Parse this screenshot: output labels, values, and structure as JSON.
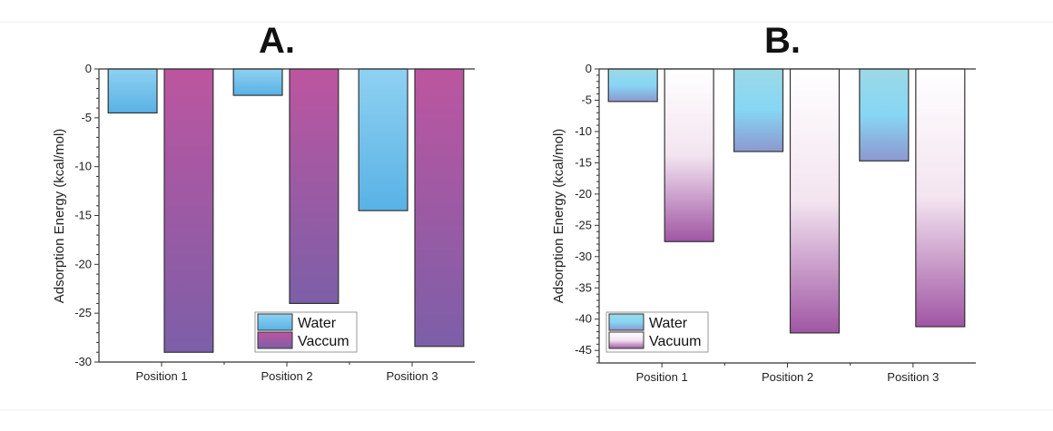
{
  "chart_data": [
    {
      "type": "bar",
      "title": "A.",
      "xlabel": "",
      "ylabel": "Adsorption Energy (kcal/mol)",
      "categories": [
        "Position 1",
        "Position 2",
        "Position 3"
      ],
      "ylim": [
        -30,
        0
      ],
      "yticks": [
        0,
        -5,
        -10,
        -15,
        -20,
        -25,
        -30
      ],
      "legend_position": "bottom-center",
      "series": [
        {
          "name": "Water",
          "values": [
            -4.5,
            -2.7,
            -14.5
          ],
          "colors": [
            "#8fd1f2",
            "#58b2e5"
          ]
        },
        {
          "name": "Vaccum",
          "values": [
            -29.0,
            -24.0,
            -28.4
          ],
          "colors": [
            "#bd55a0",
            "#7c5fa8"
          ]
        }
      ]
    },
    {
      "type": "bar",
      "title": "B.",
      "xlabel": "",
      "ylabel": "Adsorption Energy (kcal/mol)",
      "categories": [
        "Position 1",
        "Position 2",
        "Position 3"
      ],
      "ylim": [
        -47,
        0
      ],
      "yticks": [
        0,
        -5,
        -10,
        -15,
        -20,
        -25,
        -30,
        -35,
        -40,
        -45
      ],
      "legend_position": "bottom-left",
      "series": [
        {
          "name": "Water",
          "values": [
            -5.2,
            -13.2,
            -14.7
          ],
          "colors": [
            "#9cd9e6",
            "#86d6f5",
            "#8c98cf"
          ]
        },
        {
          "name": "Vacuum",
          "values": [
            -27.6,
            -42.2,
            -41.2
          ],
          "colors": [
            "#ffffff",
            "#f3e4f0",
            "#a056a4"
          ]
        }
      ]
    }
  ]
}
